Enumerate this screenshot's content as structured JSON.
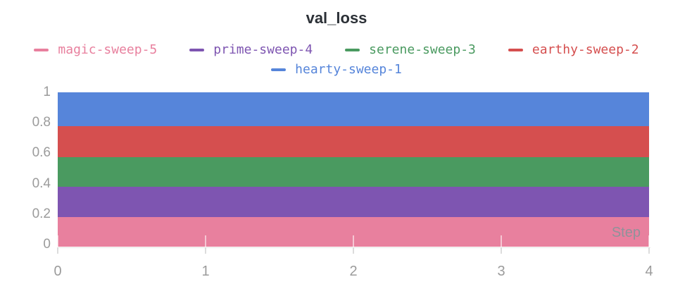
{
  "title": "val_loss",
  "chart_data": {
    "type": "area",
    "title": "val_loss",
    "xlabel": "Step",
    "ylabel": "",
    "xlim": [
      0,
      4
    ],
    "ylim": [
      0,
      1
    ],
    "x_ticks": [
      0,
      1,
      2,
      3,
      4
    ],
    "y_ticks": [
      0,
      0.2,
      0.4,
      0.6,
      0.8,
      1
    ],
    "legend_position": "top",
    "grid": "x-ticks-only",
    "series": [
      {
        "name": "magic-sweep-5",
        "color": "#e8809e",
        "value": 0.18,
        "band": [
          0,
          0.18
        ],
        "x_range": [
          0,
          4
        ]
      },
      {
        "name": "prime-sweep-4",
        "color": "#7e55b1",
        "value": 0.38,
        "band": [
          0.18,
          0.38
        ],
        "x_range": [
          0,
          4
        ]
      },
      {
        "name": "serene-sweep-3",
        "color": "#4a9a60",
        "value": 0.575,
        "band": [
          0.38,
          0.575
        ],
        "x_range": [
          0,
          4
        ]
      },
      {
        "name": "earthy-sweep-2",
        "color": "#d54f4f",
        "value": 0.78,
        "band": [
          0.575,
          0.78
        ],
        "x_range": [
          0,
          4
        ]
      },
      {
        "name": "hearty-sweep-1",
        "color": "#5685da",
        "value": 1.0,
        "band": [
          0.78,
          1.0
        ],
        "x_range": [
          0,
          4
        ]
      }
    ]
  },
  "colors": {
    "title_text": "#2b3036",
    "axis_text": "#9b9b9b",
    "step_label_text": "#8f929a",
    "axis_line": "#e7e7e7",
    "tick_mark": "#dcdcdc"
  }
}
